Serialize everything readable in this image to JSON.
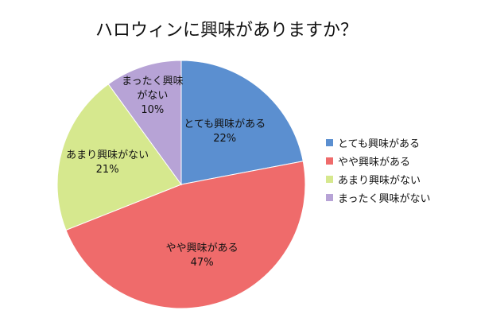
{
  "chart_data": {
    "type": "pie",
    "title": "ハロウィンに興味がありますか？",
    "categories": [
      "とても興味がある",
      "やや興味がある",
      "あまり興味がない",
      "まったく興味がない"
    ],
    "values": [
      22,
      47,
      21,
      10
    ],
    "value_labels": [
      "22%",
      "47%",
      "21%",
      "10%"
    ],
    "colors": [
      "#5b8fd0",
      "#ef6b6b",
      "#d6e88e",
      "#b7a3d6"
    ],
    "legend": "right"
  }
}
